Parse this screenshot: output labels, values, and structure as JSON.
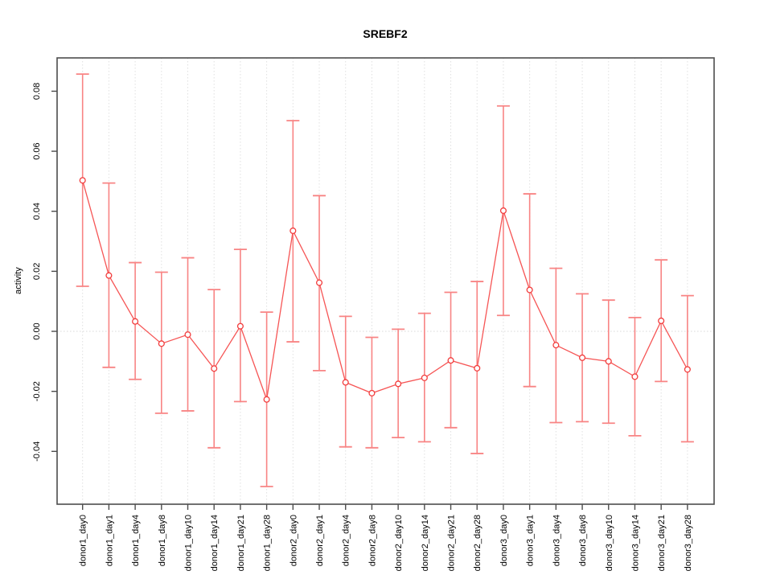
{
  "page": {
    "background": "#ffffff"
  },
  "chart_data": {
    "type": "line",
    "title": "SREBF2",
    "xlabel": "",
    "ylabel": "activity",
    "legend": "none",
    "categories": [
      "donor1_day0",
      "donor1_day1",
      "donor1_day4",
      "donor1_day8",
      "donor1_day10",
      "donor1_day14",
      "donor1_day21",
      "donor1_day28",
      "donor2_day0",
      "donor2_day1",
      "donor2_day4",
      "donor2_day8",
      "donor2_day10",
      "donor2_day14",
      "donor2_day21",
      "donor2_day28",
      "donor3_day0",
      "donor3_day1",
      "donor3_day4",
      "donor3_day8",
      "donor3_day10",
      "donor3_day14",
      "donor3_day21",
      "donor3_day28"
    ],
    "series": [
      {
        "name": "activity",
        "values": [
          0.0503,
          0.0186,
          0.0033,
          -0.0041,
          -0.0011,
          -0.0124,
          0.0017,
          -0.0227,
          0.0335,
          0.0162,
          -0.017,
          -0.0206,
          -0.0175,
          -0.0155,
          -0.0097,
          -0.0123,
          0.0402,
          0.0138,
          -0.0046,
          -0.0088,
          -0.01,
          -0.0151,
          0.0035,
          -0.0127
        ],
        "error_low": [
          0.015,
          -0.012,
          -0.016,
          -0.0273,
          -0.0265,
          -0.0388,
          -0.0234,
          -0.0517,
          -0.0035,
          -0.0131,
          -0.0385,
          -0.0388,
          -0.0354,
          -0.0368,
          -0.0321,
          -0.0407,
          0.0053,
          -0.0184,
          -0.0304,
          -0.0301,
          -0.0306,
          -0.0348,
          -0.0167,
          -0.0368
        ],
        "error_high": [
          0.0857,
          0.0494,
          0.0229,
          0.0197,
          0.0245,
          0.0139,
          0.0273,
          0.0064,
          0.0702,
          0.0452,
          0.005,
          -0.002,
          0.0007,
          0.006,
          0.013,
          0.0166,
          0.0751,
          0.0458,
          0.021,
          0.0125,
          0.0104,
          0.0046,
          0.0238,
          0.0119
        ]
      }
    ],
    "ytick_labels": [
      "0.08",
      "0.06",
      "0.04",
      "0.02",
      "0.00",
      "-0.02",
      "-0.04"
    ],
    "ytick_values": [
      0.08,
      0.06,
      0.04,
      0.02,
      0.0,
      -0.02,
      -0.04
    ],
    "ylim": [
      -0.0576,
      0.0911
    ],
    "grid": {
      "vertical_dotted_per_category": true,
      "horizontal_zero_line_dotted": true
    },
    "colors": {
      "error_bar": "#f88484",
      "series_line": "#f65555",
      "point_stroke": "#f23d3d",
      "point_fill": "#ffffff",
      "grid_line": "#e0e0e0",
      "zero_line": "#d8d8d8",
      "axis_box": "#4d4d4d",
      "label_text": "#000000"
    }
  }
}
